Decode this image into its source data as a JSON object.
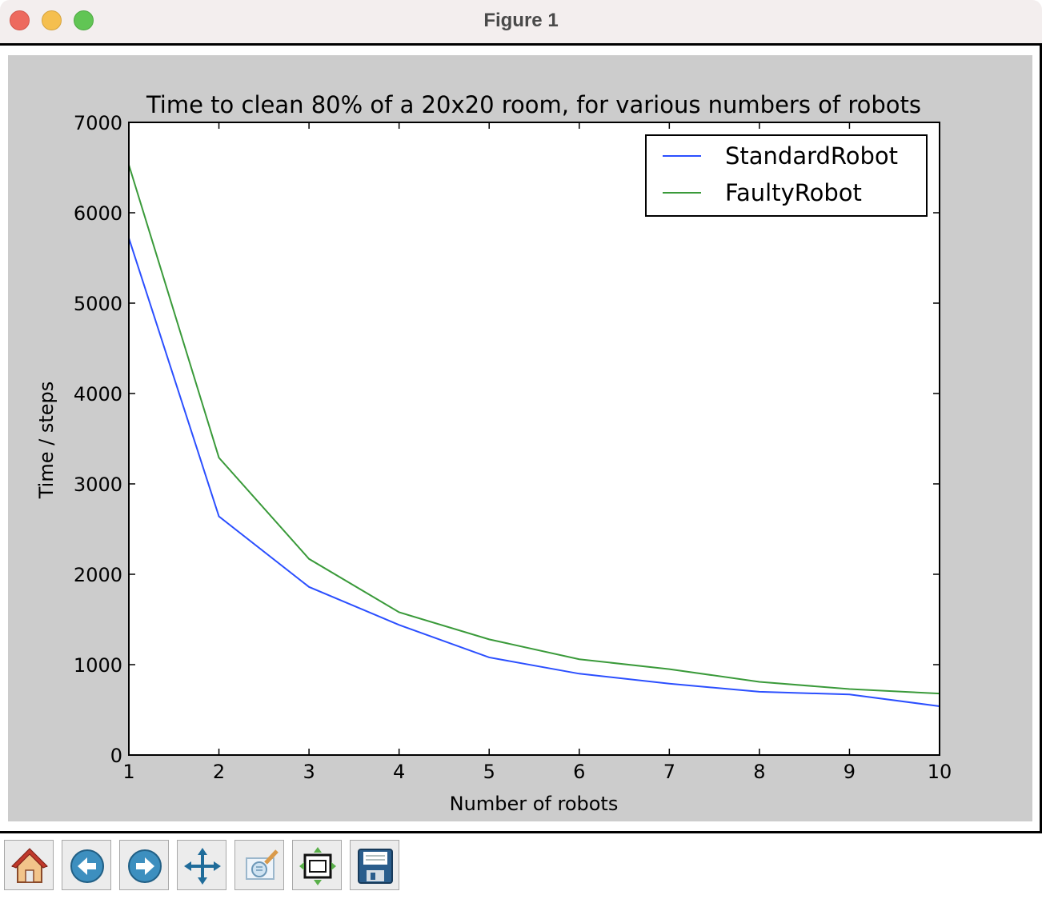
{
  "window": {
    "title": "Figure 1"
  },
  "colors": {
    "standard": "#2b4fff",
    "faulty": "#3a9a3a",
    "figure_bg": "#cccccc"
  },
  "toolbar": {
    "buttons": [
      {
        "name": "home-button",
        "icon": "home-icon"
      },
      {
        "name": "back-button",
        "icon": "back-arrow-icon"
      },
      {
        "name": "forward-button",
        "icon": "forward-arrow-icon"
      },
      {
        "name": "pan-button",
        "icon": "move-arrows-icon"
      },
      {
        "name": "zoom-button",
        "icon": "zoom-rect-icon"
      },
      {
        "name": "configure-subplots-button",
        "icon": "subplots-icon"
      },
      {
        "name": "save-button",
        "icon": "floppy-disk-icon"
      }
    ]
  },
  "chart_data": {
    "type": "line",
    "title": "Time to clean 80% of a 20x20 room, for various numbers of robots",
    "xlabel": "Number of robots",
    "ylabel": "Time / steps",
    "xlim": [
      1,
      10
    ],
    "ylim": [
      0,
      7000
    ],
    "xticks": [
      "1",
      "2",
      "3",
      "4",
      "5",
      "6",
      "7",
      "8",
      "9",
      "10"
    ],
    "yticks": [
      "0",
      "1000",
      "2000",
      "3000",
      "4000",
      "5000",
      "6000",
      "7000"
    ],
    "grid": false,
    "legend_position": "top-right",
    "x": [
      1,
      2,
      3,
      4,
      5,
      6,
      7,
      8,
      9,
      10
    ],
    "series": [
      {
        "name": "StandardRobot",
        "values": [
          5720,
          2640,
          1860,
          1440,
          1080,
          900,
          790,
          700,
          670,
          540
        ]
      },
      {
        "name": "FaultyRobot",
        "values": [
          6530,
          3290,
          2170,
          1580,
          1280,
          1060,
          950,
          810,
          730,
          680
        ]
      }
    ]
  }
}
